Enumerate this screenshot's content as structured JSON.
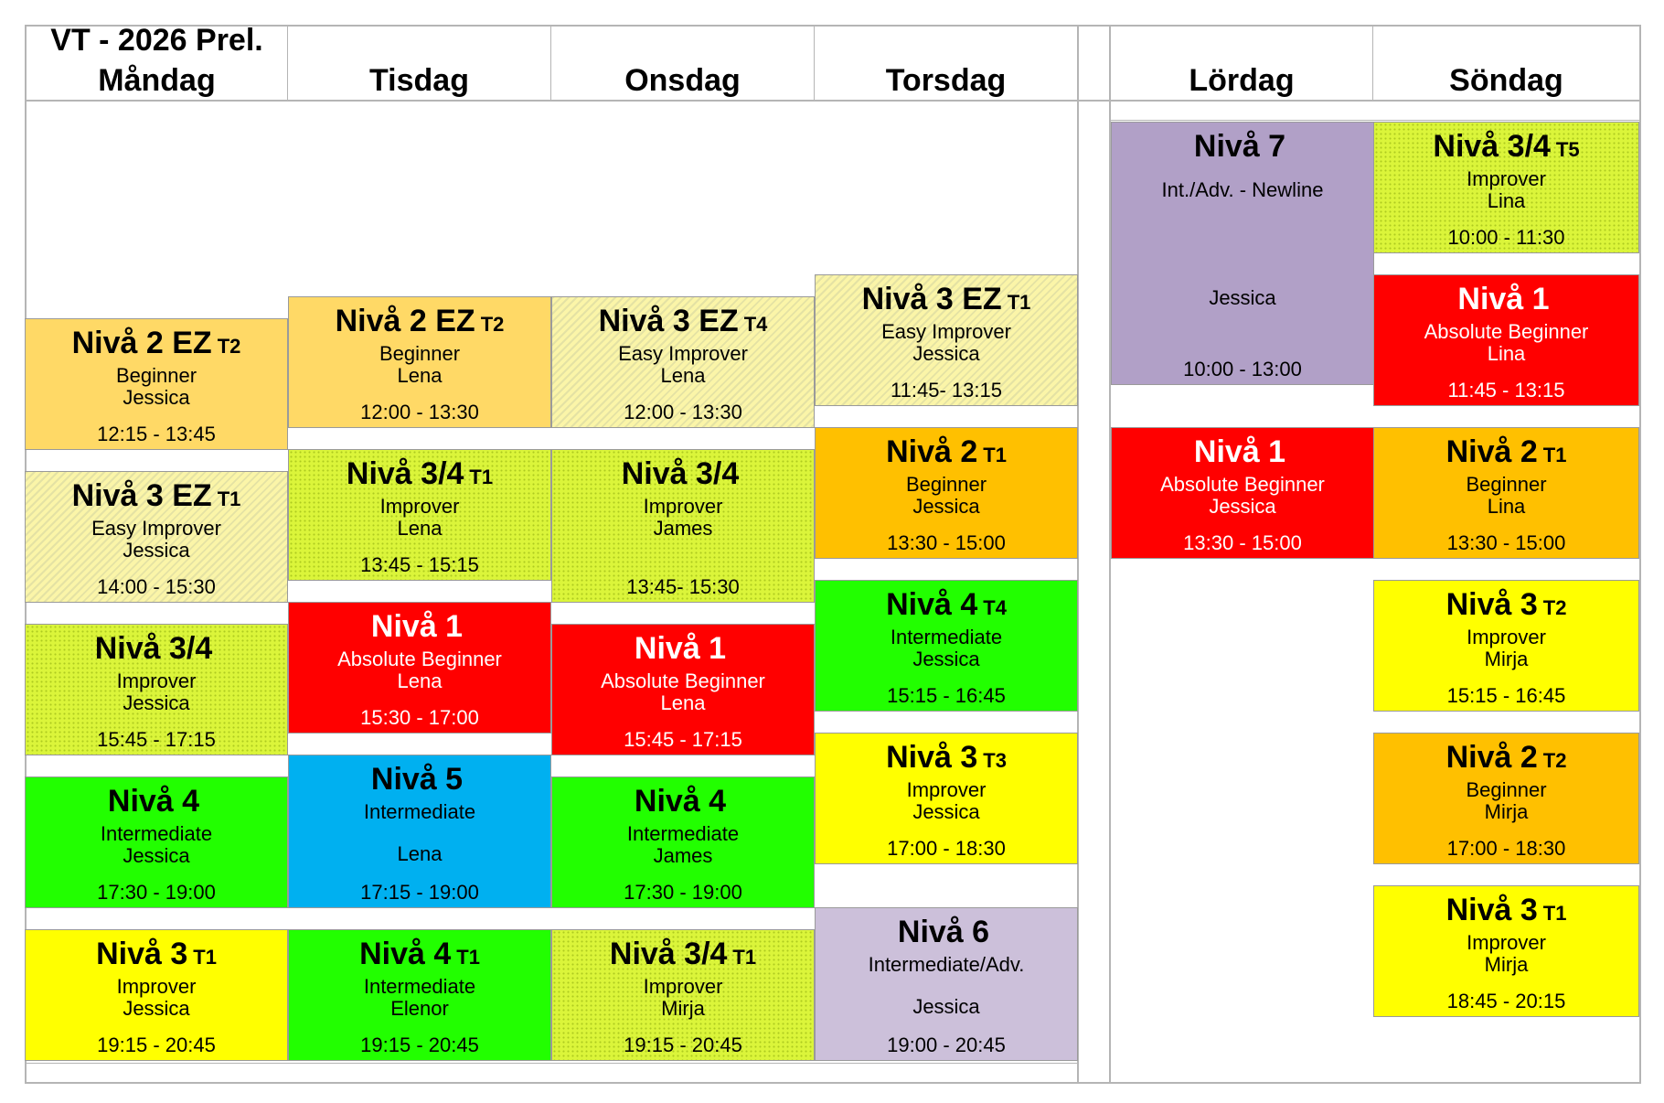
{
  "schedule_title": "VT - 2026 Prel.",
  "days": [
    "Måndag",
    "Tisdag",
    "Onsdag",
    "Torsdag",
    "Lördag",
    "Söndag"
  ],
  "colors": {
    "red": "#ff0000",
    "yellow": "#ffff00",
    "green": "#22ff00",
    "orange": "#ffc000",
    "light_orange": "#ffd966",
    "blue": "#00b0f0",
    "purple": "#b1a0c7",
    "light_purple": "#ccc0da",
    "grid_line": "#b5b5b5"
  },
  "classes": {
    "mon1": {
      "title": "Nivå 2 EZ",
      "tag": "T2",
      "level": "Beginner",
      "teacher": "Jessica",
      "time": "12:15 - 13:45"
    },
    "mon2": {
      "title": "Nivå 3 EZ",
      "tag": "T1",
      "level": "Easy Improver",
      "teacher": "Jessica",
      "time": "14:00 - 15:30"
    },
    "mon3": {
      "title": "Nivå 3/4",
      "tag": "",
      "level": "Improver",
      "teacher": "Jessica",
      "time": "15:45 - 17:15"
    },
    "mon4": {
      "title": "Nivå 4",
      "tag": "",
      "level": "Intermediate",
      "teacher": "Jessica",
      "time": "17:30 - 19:00"
    },
    "mon5": {
      "title": "Nivå 3",
      "tag": "T1",
      "level": "Improver",
      "teacher": "Jessica",
      "time": "19:15 - 20:45"
    },
    "tue1": {
      "title": "Nivå 2 EZ",
      "tag": "T2",
      "level": "Beginner",
      "teacher": "Lena",
      "time": "12:00 - 13:30"
    },
    "tue2": {
      "title": "Nivå 3/4",
      "tag": "T1",
      "level": "Improver",
      "teacher": "Lena",
      "time": "13:45 - 15:15"
    },
    "tue3": {
      "title": "Nivå 1",
      "tag": "",
      "level": "Absolute Beginner",
      "teacher": "Lena",
      "time": "15:30 - 17:00"
    },
    "tue4": {
      "title": "Nivå 5",
      "tag": "",
      "level": "Intermediate",
      "teacher": "Lena",
      "time": "17:15 - 19:00"
    },
    "tue5": {
      "title": "Nivå 4",
      "tag": "T1",
      "level": "Intermediate",
      "teacher": "Elenor",
      "time": "19:15 - 20:45"
    },
    "wed1": {
      "title": "Nivå 3 EZ",
      "tag": "T4",
      "level": "Easy Improver",
      "teacher": "Lena",
      "time": "12:00 - 13:30"
    },
    "wed2": {
      "title": "Nivå 3/4",
      "tag": "",
      "level": "Improver",
      "teacher": "James",
      "time": "13:45- 15:30"
    },
    "wed3": {
      "title": "Nivå 1",
      "tag": "",
      "level": "Absolute Beginner",
      "teacher": "Lena",
      "time": "15:45 - 17:15"
    },
    "wed4": {
      "title": "Nivå 4",
      "tag": "",
      "level": "Intermediate",
      "teacher": "James",
      "time": "17:30 - 19:00"
    },
    "wed5": {
      "title": "Nivå 3/4",
      "tag": "T1",
      "level": "Improver",
      "teacher": "Mirja",
      "time": "19:15 - 20:45"
    },
    "thu1": {
      "title": "Nivå 3 EZ",
      "tag": "T1",
      "level": "Easy Improver",
      "teacher": "Jessica",
      "time": "11:45- 13:15"
    },
    "thu2": {
      "title": "Nivå 2",
      "tag": "T1",
      "level": "Beginner",
      "teacher": "Jessica",
      "time": "13:30 - 15:00"
    },
    "thu3": {
      "title": "Nivå 4",
      "tag": "T4",
      "level": "Intermediate",
      "teacher": "Jessica",
      "time": "15:15 - 16:45"
    },
    "thu4": {
      "title": "Nivå 3",
      "tag": "T3",
      "level": "Improver",
      "teacher": "Jessica",
      "time": "17:00 - 18:30"
    },
    "thu5": {
      "title": "Nivå 6",
      "tag": "",
      "level": "Intermediate/Adv.",
      "teacher": "Jessica",
      "time": "19:00 - 20:45"
    },
    "sat1": {
      "title": "Nivå 7",
      "tag": "",
      "level": "Int./Adv. - Newline",
      "teacher": "Jessica",
      "time": "10:00 - 13:00"
    },
    "sat2": {
      "title": "Nivå 1",
      "tag": "",
      "level": "Absolute Beginner",
      "teacher": "Jessica",
      "time": "13:30 - 15:00"
    },
    "sun1": {
      "title": "Nivå 3/4",
      "tag": "T5",
      "level": "Improver",
      "teacher": "Lina",
      "time": "10:00 - 11:30"
    },
    "sun2": {
      "title": "Nivå 1",
      "tag": "",
      "level": "Absolute Beginner",
      "teacher": "Lina",
      "time": "11:45 - 13:15"
    },
    "sun3": {
      "title": "Nivå 2",
      "tag": "T1",
      "level": "Beginner",
      "teacher": "Lina",
      "time": "13:30 - 15:00"
    },
    "sun4": {
      "title": "Nivå 3",
      "tag": "T2",
      "level": "Improver",
      "teacher": "Mirja",
      "time": "15:15 - 16:45"
    },
    "sun5": {
      "title": "Nivå 2",
      "tag": "T2",
      "level": "Beginner",
      "teacher": "Mirja",
      "time": "17:00 - 18:30"
    },
    "sun6": {
      "title": "Nivå 3",
      "tag": "T1",
      "level": "Improver",
      "teacher": "Mirja",
      "time": "18:45 - 20:15"
    }
  }
}
